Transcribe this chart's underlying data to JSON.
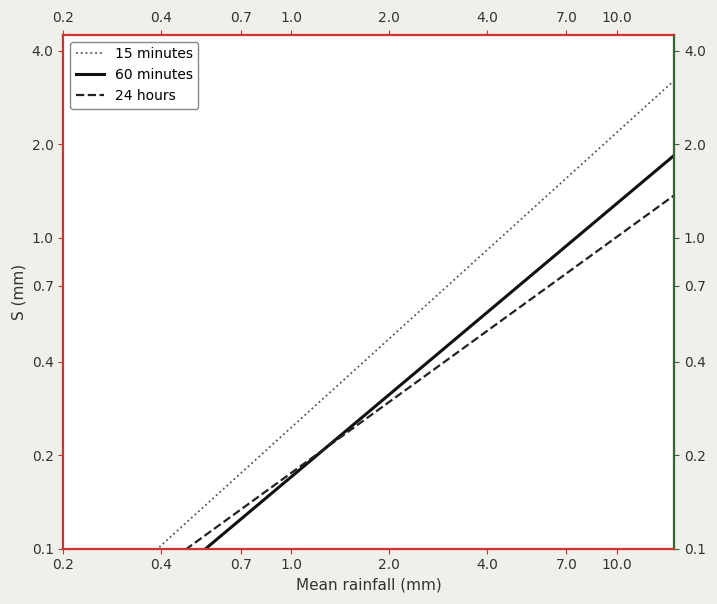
{
  "title": "",
  "xlabel": "Mean rainfall (mm)",
  "ylabel": "S (mm)",
  "xmin": 0.2,
  "xmax": 15.0,
  "ymin": 0.1,
  "ymax": 4.5,
  "xticks": [
    0.2,
    0.4,
    0.7,
    1.0,
    2.0,
    4.0,
    7.0,
    10.0
  ],
  "yticks": [
    0.1,
    0.2,
    0.4,
    0.7,
    1.0,
    2.0,
    4.0
  ],
  "lines": [
    {
      "label": "15 minutes",
      "style": "dotted",
      "color": "#555555",
      "linewidth": 1.3,
      "a": 0.245,
      "b": 0.95
    },
    {
      "label": "60 minutes",
      "style": "solid",
      "color": "#111111",
      "linewidth": 2.2,
      "a": 0.17,
      "b": 0.88
    },
    {
      "label": "24 hours",
      "style": "dashed",
      "color": "#222222",
      "linewidth": 1.6,
      "a": 0.175,
      "b": 0.76
    }
  ],
  "legend_loc": "upper left",
  "bg_color": "#f0f0eb",
  "plot_bg_color": "#ffffff",
  "spine_color_left": "#cc3333",
  "spine_color_bottom": "#cc3333",
  "spine_color_top": "#cc3333",
  "spine_color_right": "#336633",
  "tick_color_left": "#cc3333",
  "tick_color_bottom": "#cc3333",
  "tick_color_top": "#cc3333",
  "tick_color_right": "#336633",
  "label_color": "#333333"
}
